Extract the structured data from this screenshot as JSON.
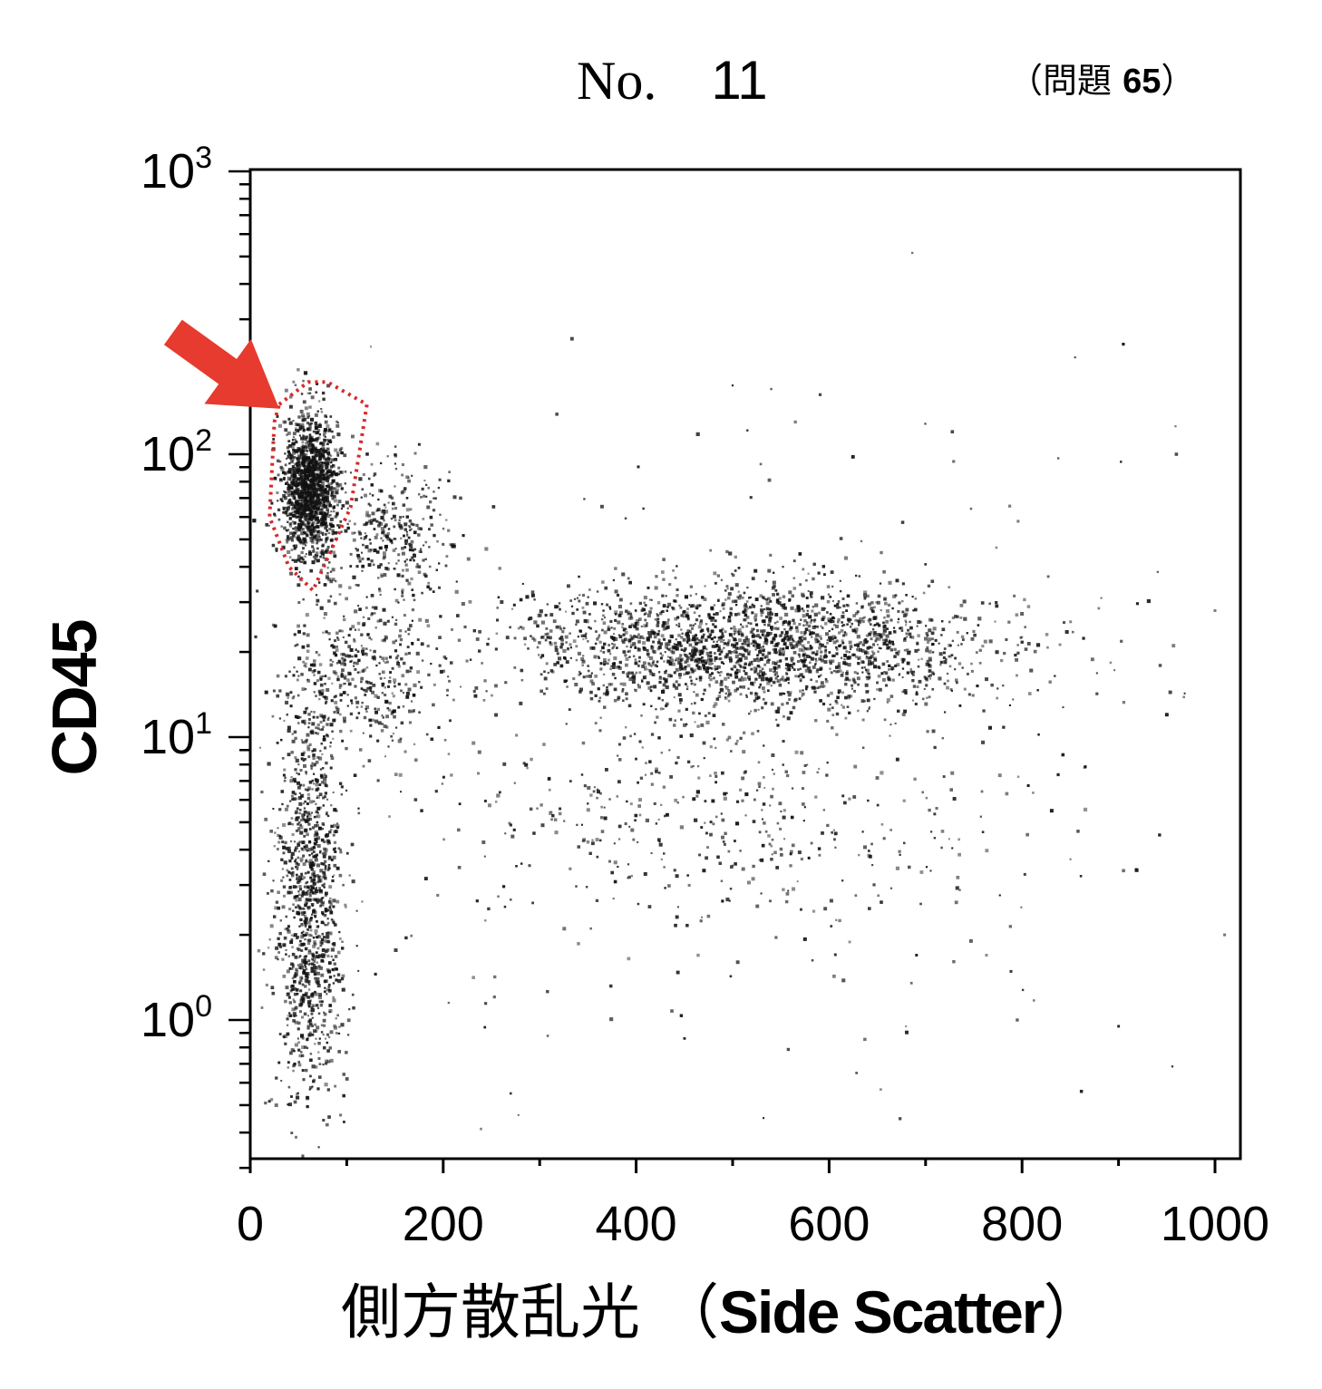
{
  "header": {
    "no_prefix": "No.",
    "no_value": "11",
    "question_open": "（",
    "question_text": "問題",
    "question_number": "65",
    "question_close": "）"
  },
  "colors": {
    "points": "#111111",
    "gate": "#d62a2a",
    "arrow": "#e63b2e",
    "axis": "#000000"
  },
  "chart_data": {
    "type": "scatter",
    "title": "",
    "xlabel_ja": "側方散乱光",
    "xlabel_en": "Side Scatter",
    "xlabel_open": "（",
    "xlabel_close": "）",
    "ylabel": "CD45",
    "xlim": [
      0,
      1020
    ],
    "ylim": [
      0.3,
      1000
    ],
    "yscale": "log",
    "xticks": [
      0,
      200,
      400,
      600,
      800,
      1000
    ],
    "xtick_labels": [
      "0",
      "200",
      "400",
      "600",
      "800",
      "1000"
    ],
    "yticks": [
      1,
      10,
      100,
      1000
    ],
    "ytick_labels": [
      {
        "base": "10",
        "exp": "0"
      },
      {
        "base": "10",
        "exp": "1"
      },
      {
        "base": "10",
        "exp": "2"
      },
      {
        "base": "10",
        "exp": "3"
      }
    ],
    "grid": false,
    "legend": "none",
    "gate": {
      "shape": "polygon",
      "style": "dotted",
      "vertices": [
        [
          30,
          150
        ],
        [
          60,
          180
        ],
        [
          80,
          180
        ],
        [
          121,
          150
        ],
        [
          104,
          65
        ],
        [
          65,
          33
        ],
        [
          40,
          40
        ],
        [
          20,
          60
        ],
        [
          25,
          130
        ]
      ]
    },
    "arrow": {
      "from": [
        -80,
        270
      ],
      "to": [
        30,
        145
      ]
    },
    "clusters": [
      {
        "name": "gated",
        "x_mean": 62,
        "x_sd": 14,
        "log10y_mean": 1.88,
        "log10y_sd": 0.13,
        "count": 1500
      },
      {
        "name": "gated-right",
        "x_mean": 150,
        "x_sd": 30,
        "log10y_mean": 1.72,
        "log10y_sd": 0.13,
        "count": 320
      },
      {
        "name": "mid-left",
        "x_mean": 110,
        "x_sd": 40,
        "log10y_mean": 1.23,
        "log10y_sd": 0.13,
        "count": 420
      },
      {
        "name": "granulocyte",
        "x_mean": 520,
        "x_sd": 120,
        "log10y_mean": 1.32,
        "log10y_sd": 0.11,
        "count": 2200
      },
      {
        "name": "low-left",
        "x_mean": 62,
        "x_sd": 18,
        "log10y_mean": 0.4,
        "log10y_sd": 0.34,
        "count": 1100
      },
      {
        "name": "mid-scatter",
        "x_mean": 480,
        "x_sd": 150,
        "log10y_mean": 0.7,
        "log10y_sd": 0.2,
        "count": 380
      },
      {
        "name": "sparse",
        "x_mean": 450,
        "x_sd": 300,
        "log10y_mean": 0.9,
        "log10y_sd": 0.6,
        "count": 320
      }
    ],
    "outliers": [
      [
        125,
        240
      ],
      [
        500,
        175
      ],
      [
        540,
        170
      ],
      [
        855,
        220
      ],
      [
        905,
        245
      ],
      [
        960,
        100
      ],
      [
        565,
        130
      ],
      [
        795,
        1.0
      ],
      [
        900,
        0.95
      ],
      [
        1010,
        2.0
      ],
      [
        532,
        0.45
      ],
      [
        950,
        12
      ],
      [
        1000,
        28
      ],
      [
        270,
        0.55
      ]
    ]
  }
}
